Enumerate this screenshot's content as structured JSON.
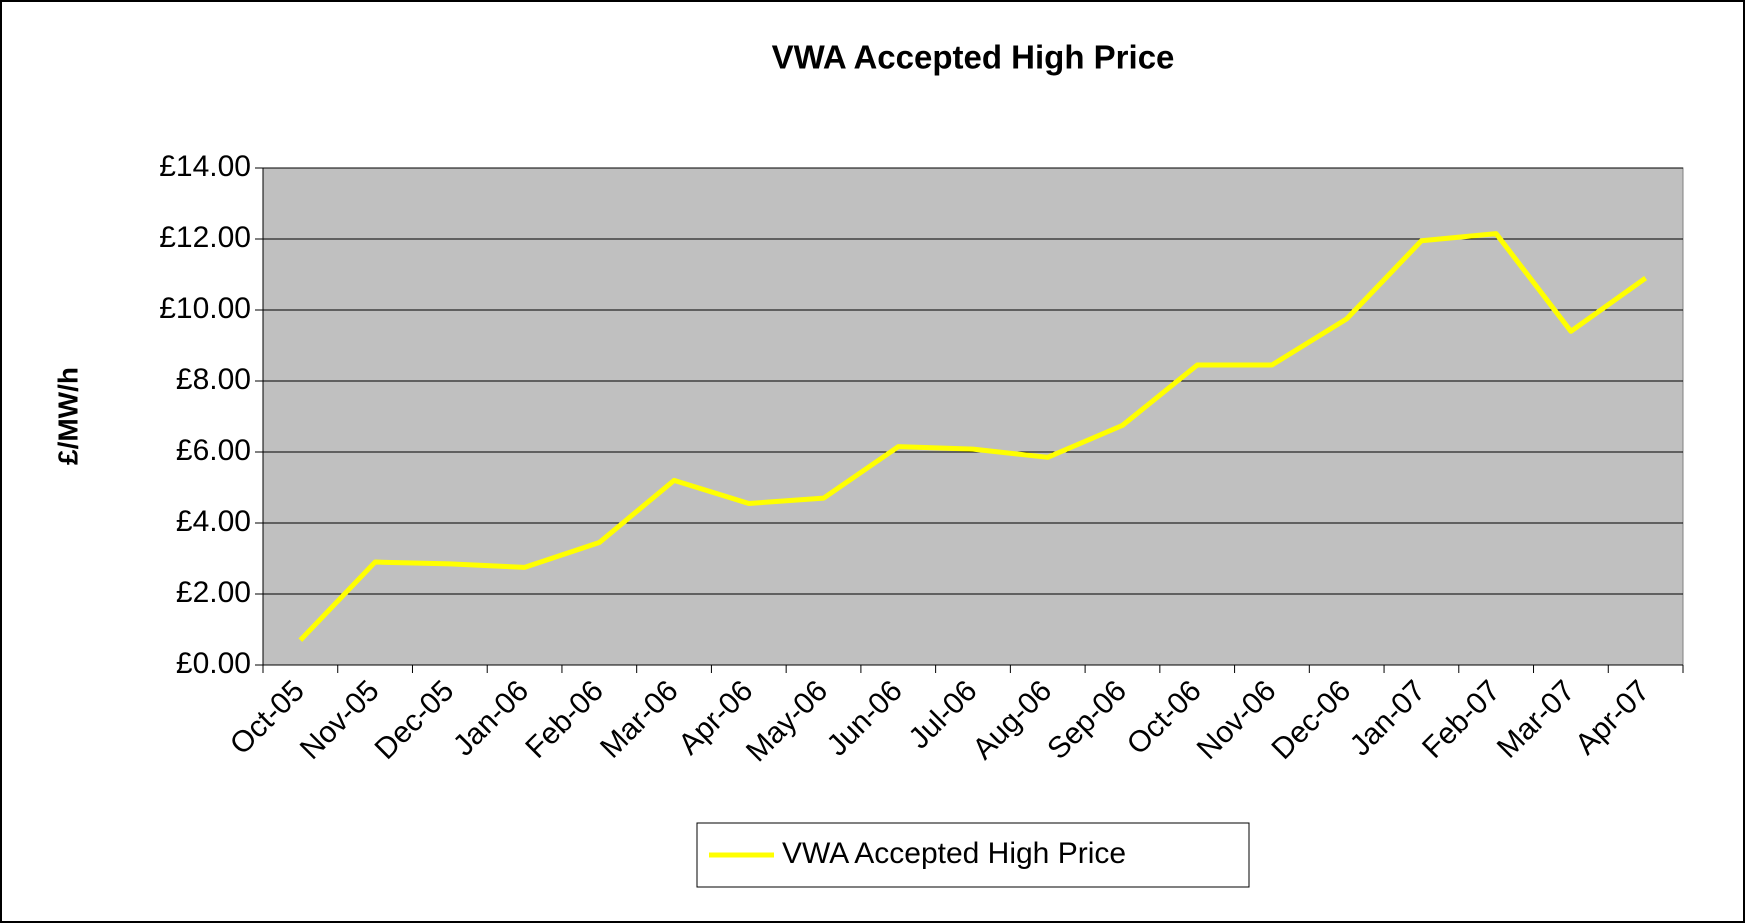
{
  "chart_data": {
    "type": "line",
    "title": "VWA Accepted High Price",
    "y_label": "£/MW/h",
    "categories": [
      "Oct-05",
      "Nov-05",
      "Dec-05",
      "Jan-06",
      "Feb-06",
      "Mar-06",
      "Apr-06",
      "May-06",
      "Jun-06",
      "Jul-06",
      "Aug-06",
      "Sep-06",
      "Oct-06",
      "Nov-06",
      "Dec-06",
      "Jan-07",
      "Feb-07",
      "Mar-07",
      "Apr-07"
    ],
    "series": [
      {
        "name": "VWA Accepted High Price",
        "color": "#ffff00",
        "values": [
          0.7,
          2.9,
          2.85,
          2.75,
          3.45,
          5.2,
          4.55,
          4.7,
          6.15,
          6.08,
          5.85,
          6.75,
          8.45,
          8.45,
          9.75,
          11.95,
          12.15,
          9.4,
          10.9
        ]
      }
    ],
    "ylim": [
      0,
      14
    ],
    "yticks": [
      {
        "value": 0,
        "label": "£0.00"
      },
      {
        "value": 2,
        "label": "£2.00"
      },
      {
        "value": 4,
        "label": "£4.00"
      },
      {
        "value": 6,
        "label": "£6.00"
      },
      {
        "value": 8,
        "label": "£8.00"
      },
      {
        "value": 10,
        "label": "£10.00"
      },
      {
        "value": 12,
        "label": "£12.00"
      },
      {
        "value": 14,
        "label": "£14.00"
      }
    ],
    "grid": true,
    "plot_background": "#c0c0c0",
    "legend": "bottom"
  }
}
